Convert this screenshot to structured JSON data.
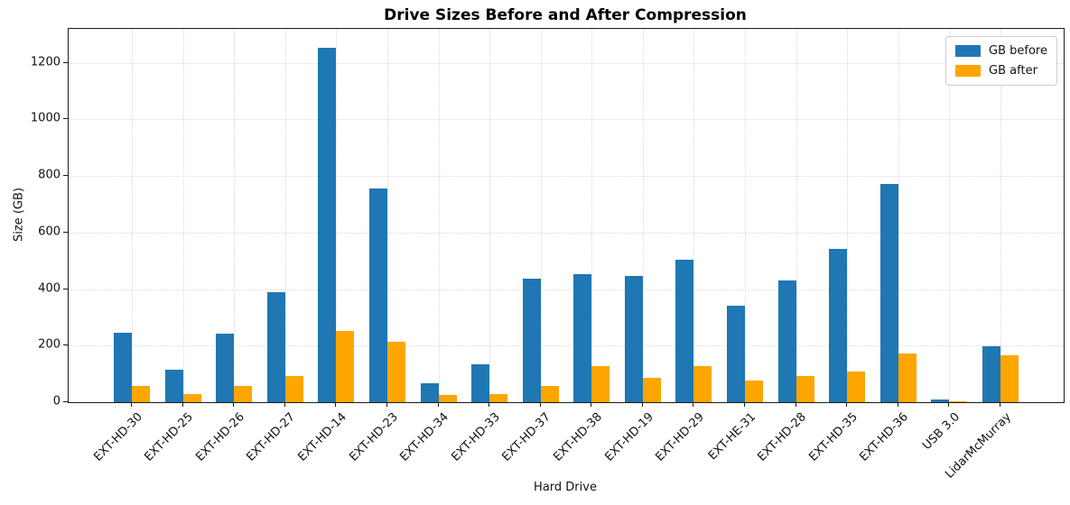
{
  "chart_data": {
    "type": "bar",
    "title": "Drive Sizes Before and After Compression",
    "xlabel": "Hard Drive",
    "ylabel": "Size (GB)",
    "categories": [
      "EXT-HD-30",
      "EXT-HD-25",
      "EXT-HD-26",
      "EXT-HD-27",
      "EXT-HD-14",
      "EXT-HD-23",
      "EXT-HD-34",
      "EXT-HD-33",
      "EXT-HD-37",
      "EXT-HD-38",
      "EXT-HD-19",
      "EXT-HD-29",
      "EXT-HE-31",
      "EXT-HD-28",
      "EXT-HD-35",
      "EXT-HD-36",
      "USB 3.0",
      "LidarMcMurray"
    ],
    "series": [
      {
        "name": "GB before",
        "color": "#1f77b4",
        "values": [
          245,
          114,
          242,
          390,
          1254,
          755,
          68,
          133,
          437,
          452,
          445,
          503,
          340,
          431,
          543,
          773,
          10,
          197
        ]
      },
      {
        "name": "GB after",
        "color": "#ffa500",
        "values": [
          58,
          30,
          56,
          92,
          253,
          215,
          25,
          29,
          56,
          126,
          85,
          126,
          76,
          94,
          107,
          172,
          3,
          165
        ]
      }
    ],
    "ylim": [
      0,
      1320
    ],
    "yticks": [
      0,
      200,
      400,
      600,
      800,
      1000,
      1200
    ],
    "grid": true,
    "legend_position": "top-right"
  }
}
